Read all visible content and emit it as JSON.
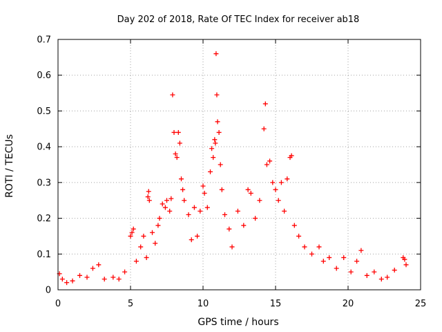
{
  "chart_data": {
    "type": "scatter",
    "title": "Day 202 of 2018, Rate Of TEC Index for receiver ab18",
    "xlabel": "GPS time / hours",
    "ylabel": "ROTI / TECUs",
    "xlim": [
      0,
      25
    ],
    "ylim": [
      0,
      0.7
    ],
    "x_ticks": [
      0,
      5,
      10,
      15,
      20,
      25
    ],
    "x_tick_labels": [
      "0",
      "5",
      "10",
      "15",
      "20",
      "25"
    ],
    "y_ticks": [
      0,
      0.1,
      0.2,
      0.3,
      0.4,
      0.5,
      0.6,
      0.7
    ],
    "y_tick_labels": [
      "0",
      "0.1",
      "0.2",
      "0.3",
      "0.4",
      "0.5",
      "0.6",
      "0.7"
    ],
    "grid": true,
    "marker": "+",
    "series": [
      {
        "color": "#ff0000",
        "points": [
          [
            0.1,
            0.045
          ],
          [
            0.3,
            0.03
          ],
          [
            0.6,
            0.02
          ],
          [
            1.0,
            0.025
          ],
          [
            1.5,
            0.04
          ],
          [
            2.0,
            0.035
          ],
          [
            2.4,
            0.06
          ],
          [
            2.8,
            0.07
          ],
          [
            3.2,
            0.03
          ],
          [
            3.8,
            0.035
          ],
          [
            4.2,
            0.03
          ],
          [
            4.6,
            0.05
          ],
          [
            5.0,
            0.15
          ],
          [
            5.1,
            0.16
          ],
          [
            5.2,
            0.17
          ],
          [
            5.4,
            0.08
          ],
          [
            5.7,
            0.12
          ],
          [
            5.9,
            0.15
          ],
          [
            6.1,
            0.09
          ],
          [
            6.2,
            0.26
          ],
          [
            6.25,
            0.275
          ],
          [
            6.3,
            0.25
          ],
          [
            6.5,
            0.16
          ],
          [
            6.7,
            0.13
          ],
          [
            6.9,
            0.18
          ],
          [
            7.0,
            0.2
          ],
          [
            7.2,
            0.24
          ],
          [
            7.4,
            0.23
          ],
          [
            7.5,
            0.25
          ],
          [
            7.7,
            0.22
          ],
          [
            7.8,
            0.255
          ],
          [
            7.9,
            0.545
          ],
          [
            8.0,
            0.44
          ],
          [
            8.1,
            0.38
          ],
          [
            8.2,
            0.37
          ],
          [
            8.3,
            0.44
          ],
          [
            8.4,
            0.41
          ],
          [
            8.5,
            0.31
          ],
          [
            8.6,
            0.28
          ],
          [
            8.7,
            0.25
          ],
          [
            9.0,
            0.21
          ],
          [
            9.2,
            0.14
          ],
          [
            9.4,
            0.23
          ],
          [
            9.6,
            0.15
          ],
          [
            9.8,
            0.22
          ],
          [
            10.0,
            0.29
          ],
          [
            10.1,
            0.27
          ],
          [
            10.3,
            0.23
          ],
          [
            10.5,
            0.33
          ],
          [
            10.6,
            0.395
          ],
          [
            10.7,
            0.37
          ],
          [
            10.8,
            0.42
          ],
          [
            10.85,
            0.41
          ],
          [
            10.9,
            0.66
          ],
          [
            10.95,
            0.545
          ],
          [
            11.0,
            0.47
          ],
          [
            11.1,
            0.44
          ],
          [
            11.2,
            0.35
          ],
          [
            11.3,
            0.28
          ],
          [
            11.5,
            0.21
          ],
          [
            11.8,
            0.17
          ],
          [
            12.0,
            0.12
          ],
          [
            12.4,
            0.22
          ],
          [
            12.8,
            0.18
          ],
          [
            13.1,
            0.28
          ],
          [
            13.3,
            0.27
          ],
          [
            13.6,
            0.2
          ],
          [
            13.9,
            0.25
          ],
          [
            14.2,
            0.45
          ],
          [
            14.3,
            0.52
          ],
          [
            14.4,
            0.35
          ],
          [
            14.6,
            0.36
          ],
          [
            14.8,
            0.3
          ],
          [
            15.0,
            0.28
          ],
          [
            15.2,
            0.25
          ],
          [
            15.4,
            0.3
          ],
          [
            15.6,
            0.22
          ],
          [
            15.8,
            0.31
          ],
          [
            16.0,
            0.37
          ],
          [
            16.1,
            0.375
          ],
          [
            16.3,
            0.18
          ],
          [
            16.6,
            0.15
          ],
          [
            17.0,
            0.12
          ],
          [
            17.5,
            0.1
          ],
          [
            18.0,
            0.12
          ],
          [
            18.3,
            0.08
          ],
          [
            18.7,
            0.09
          ],
          [
            19.2,
            0.06
          ],
          [
            19.7,
            0.09
          ],
          [
            20.2,
            0.05
          ],
          [
            20.6,
            0.08
          ],
          [
            20.9,
            0.11
          ],
          [
            21.3,
            0.04
          ],
          [
            21.8,
            0.05
          ],
          [
            22.3,
            0.03
          ],
          [
            22.7,
            0.035
          ],
          [
            23.2,
            0.055
          ],
          [
            23.8,
            0.09
          ],
          [
            23.9,
            0.085
          ],
          [
            24.0,
            0.07
          ]
        ]
      }
    ]
  }
}
